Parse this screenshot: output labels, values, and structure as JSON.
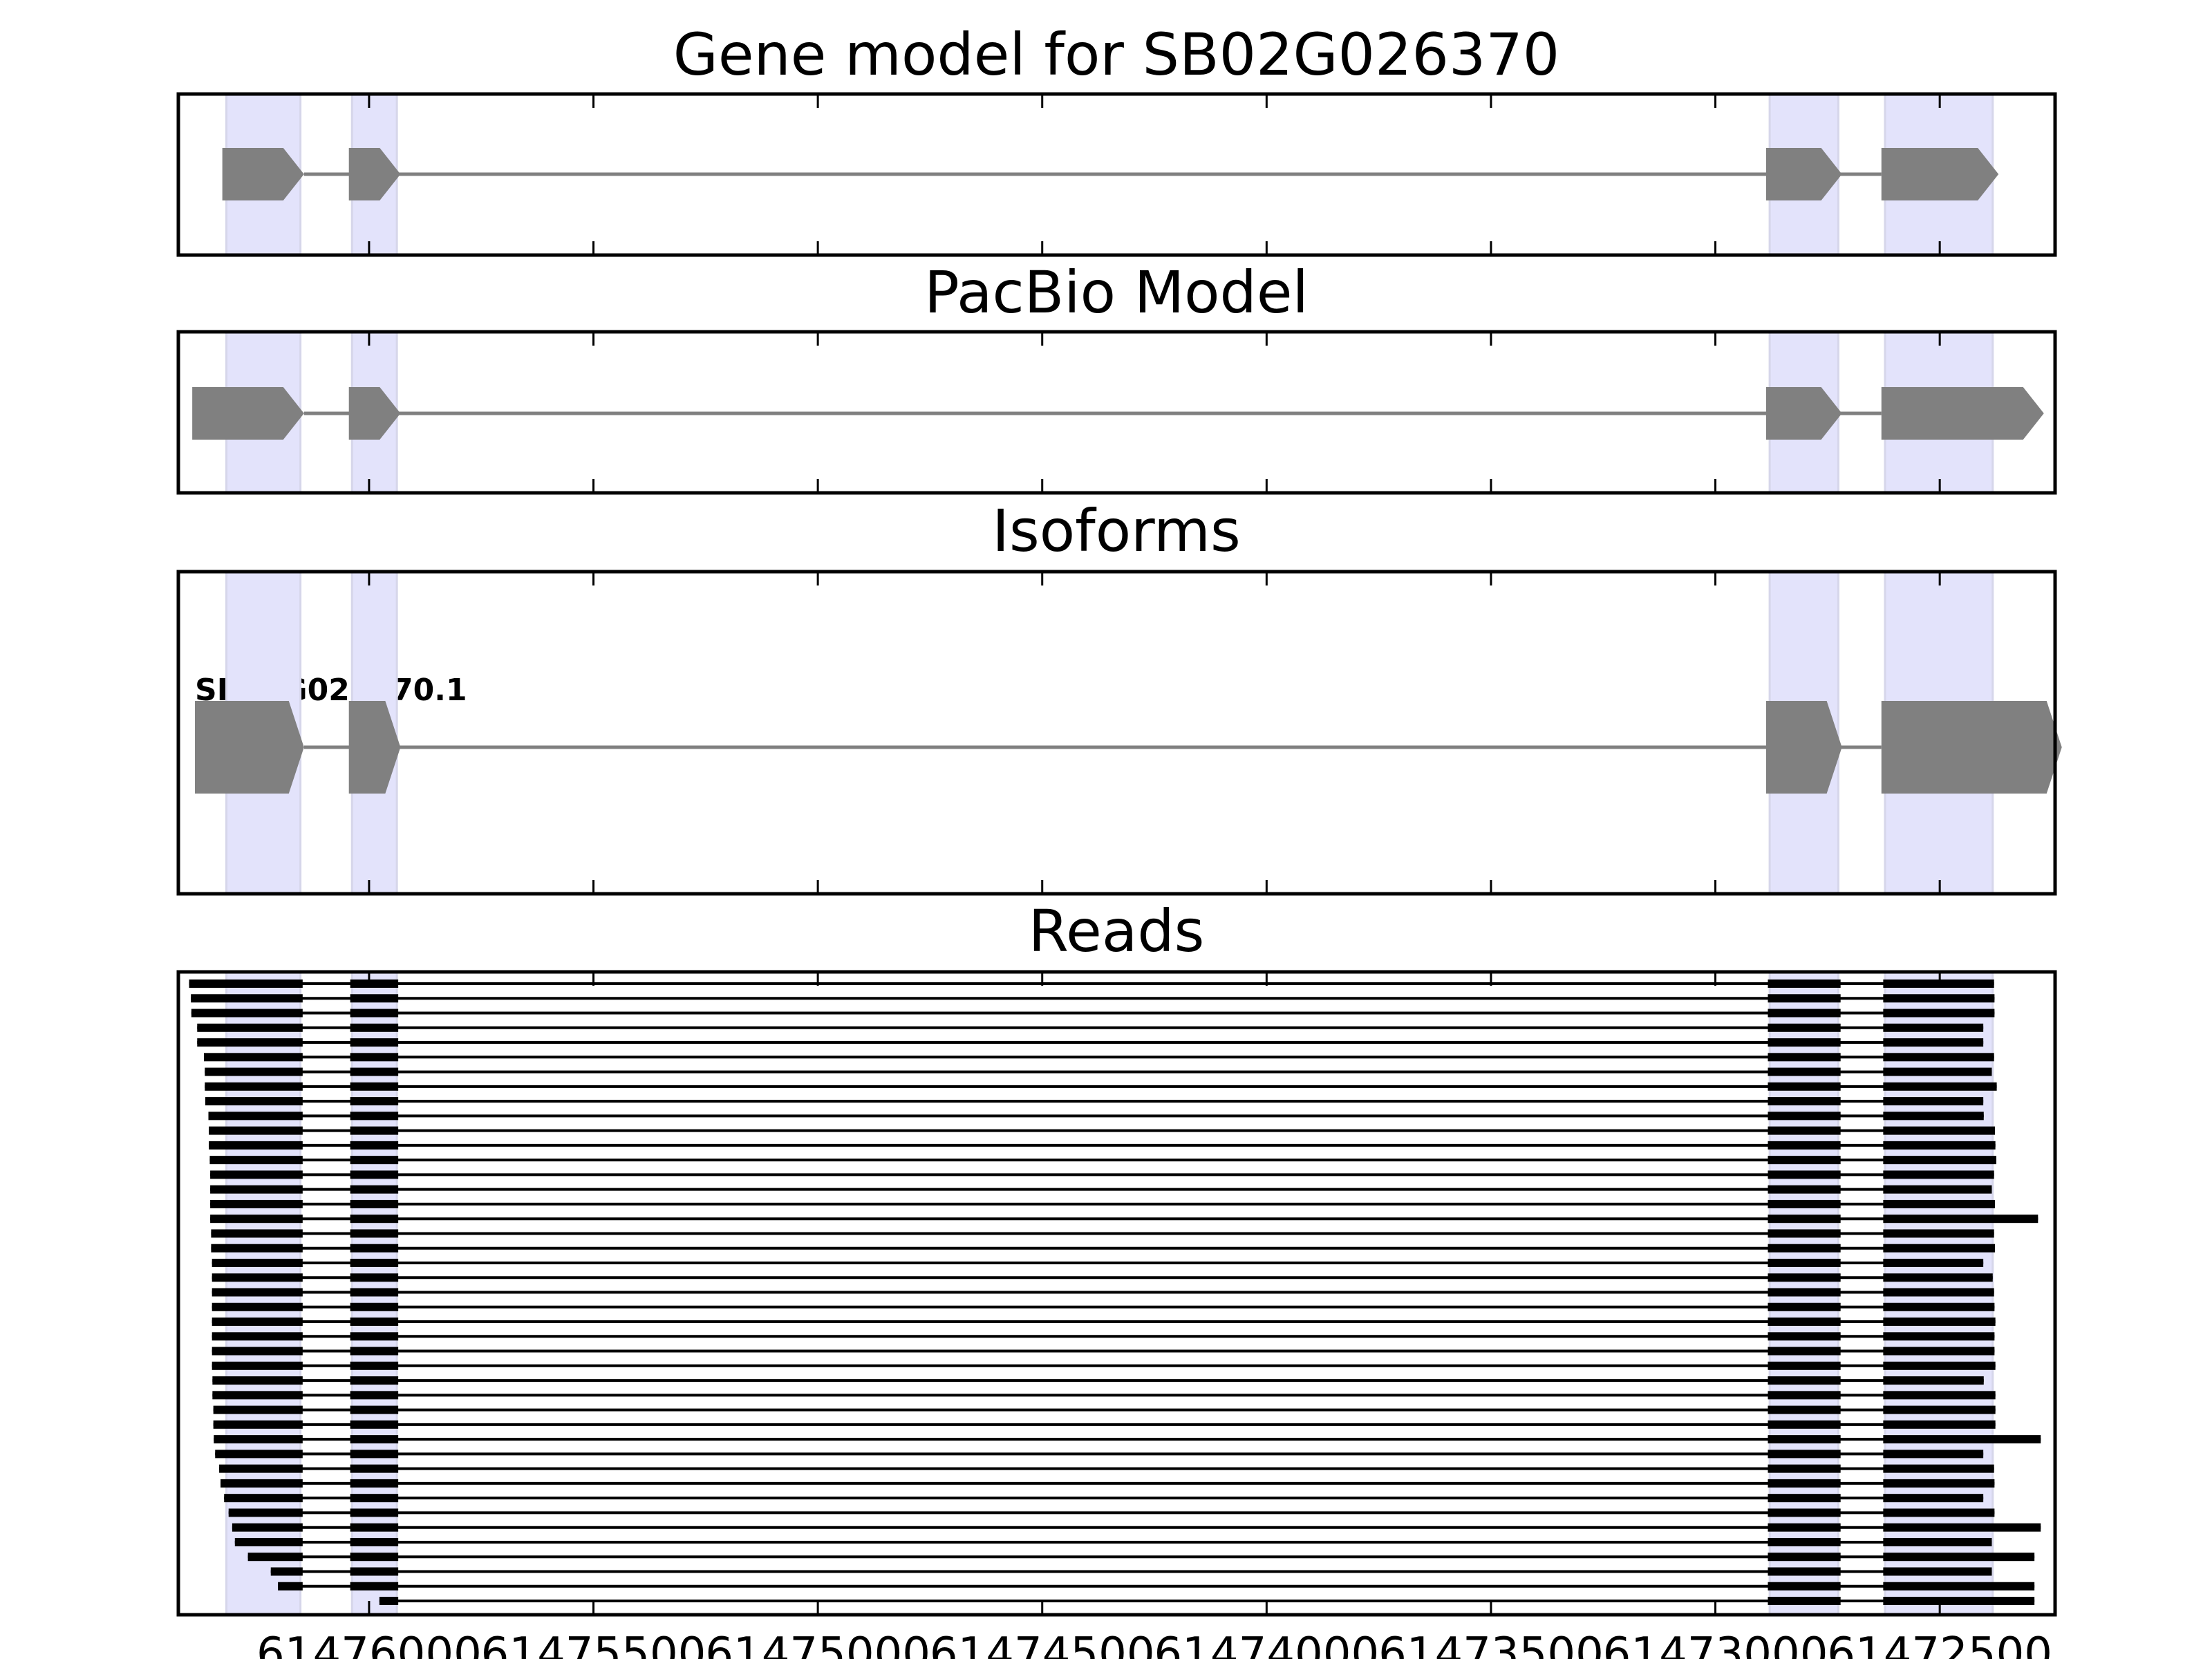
{
  "chart_data": {
    "type": "gene-track",
    "xlim": [
      61476425,
      61472243
    ],
    "x_reversed": true,
    "x_ticks": [
      61476000,
      61475500,
      61475000,
      61474500,
      61474000,
      61473500,
      61473000,
      61472500
    ],
    "x_tick_labels": [
      "61476000",
      "61475500",
      "61475000",
      "61474500",
      "61474000",
      "61473500",
      "61473000",
      "61472500"
    ],
    "colors": {
      "exon": "#808080",
      "intron": "#808080",
      "shade": "#e3e3fb",
      "read": "#000000"
    },
    "shaded_regions": [
      [
        61476318,
        61476153
      ],
      [
        61476038,
        61475938
      ],
      [
        61472879,
        61472726
      ],
      [
        61472622,
        61472382
      ]
    ],
    "panels": [
      {
        "title": "Gene model for SB02G026370",
        "exons": [
          [
            61476327,
            61476145
          ],
          [
            61476045,
            61475930
          ],
          [
            61472887,
            61472718
          ],
          [
            61472630,
            61472369
          ]
        ],
        "strand": "-"
      },
      {
        "title": "PacBio Model",
        "exons": [
          [
            61476394,
            61476145
          ],
          [
            61476045,
            61475930
          ],
          [
            61472887,
            61472718
          ],
          [
            61472630,
            61472268
          ]
        ],
        "strand": "-"
      },
      {
        "title": "Isoforms",
        "isoform_label": "SB02G026370.1",
        "exons": [
          [
            61476388,
            61476145
          ],
          [
            61476045,
            61475930
          ],
          [
            61472887,
            61472718
          ],
          [
            61472630,
            61472228
          ]
        ],
        "strand": "-"
      }
    ],
    "reads_panel": {
      "title": "Reads",
      "internal_exons": [
        [
          61476148,
          61476042
        ],
        [
          61476042,
          61475935
        ],
        [
          61472883,
          61472721
        ],
        [
          61472626,
          61472626
        ]
      ],
      "reads": [
        [
          61476401,
          61472379
        ],
        [
          61476397,
          61472378
        ],
        [
          61476396,
          61472378
        ],
        [
          61476383,
          61472403
        ],
        [
          61476383,
          61472403
        ],
        [
          61476368,
          61472379
        ],
        [
          61476366,
          61472384
        ],
        [
          61476366,
          61472373
        ],
        [
          61476365,
          61472403
        ],
        [
          61476358,
          61472402
        ],
        [
          61476357,
          61472377
        ],
        [
          61476357,
          61472376
        ],
        [
          61476355,
          61472374
        ],
        [
          61476354,
          61472379
        ],
        [
          61476354,
          61472384
        ],
        [
          61476354,
          61472377
        ],
        [
          61476354,
          61472281
        ],
        [
          61476352,
          61472379
        ],
        [
          61476352,
          61472377
        ],
        [
          61476350,
          61472403
        ],
        [
          61476350,
          61472382
        ],
        [
          61476350,
          61472379
        ],
        [
          61476350,
          61472378
        ],
        [
          61476350,
          61472376
        ],
        [
          61476350,
          61472378
        ],
        [
          61476350,
          61472378
        ],
        [
          61476350,
          61472376
        ],
        [
          61476349,
          61472402
        ],
        [
          61476349,
          61472376
        ],
        [
          61476347,
          61472376
        ],
        [
          61476347,
          61472376
        ],
        [
          61476346,
          61472275
        ],
        [
          61476343,
          61472403
        ],
        [
          61476334,
          61472379
        ],
        [
          61476331,
          61472378
        ],
        [
          61476323,
          61472403
        ],
        [
          61476313,
          61472378
        ],
        [
          61476305,
          61472275
        ],
        [
          61476299,
          61472384
        ],
        [
          61476270,
          61472289
        ],
        [
          61476219,
          61472384
        ],
        [
          61476203,
          61472289
        ],
        [
          61475977,
          61472289
        ]
      ]
    }
  }
}
